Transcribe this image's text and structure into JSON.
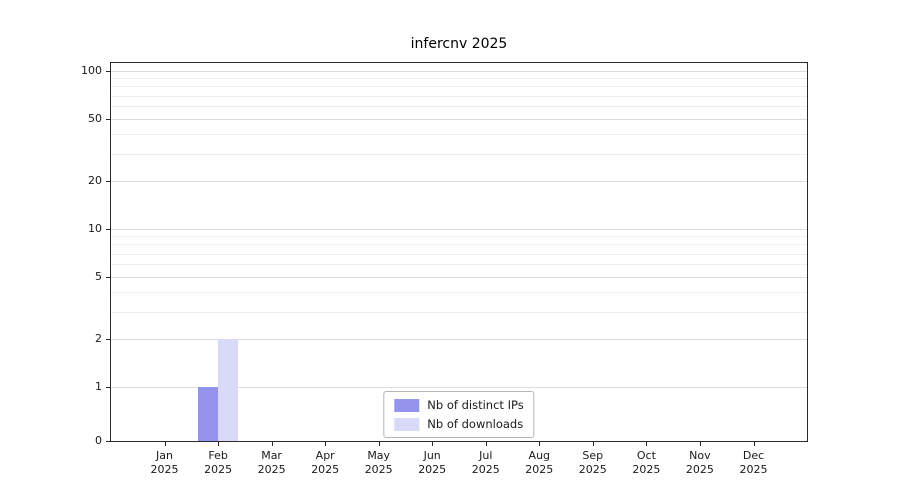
{
  "chart_data": {
    "type": "bar",
    "title": "infercnv 2025",
    "year_label": "2025",
    "categories": [
      "Jan",
      "Feb",
      "Mar",
      "Apr",
      "May",
      "Jun",
      "Jul",
      "Aug",
      "Sep",
      "Oct",
      "Nov",
      "Dec"
    ],
    "series": [
      {
        "name": "Nb of distinct IPs",
        "color": "#9494ec",
        "values": [
          0,
          1,
          0,
          0,
          0,
          0,
          0,
          0,
          0,
          0,
          0,
          0
        ]
      },
      {
        "name": "Nb of downloads",
        "color": "#d9d9f8",
        "values": [
          0,
          2,
          0,
          0,
          0,
          0,
          0,
          0,
          0,
          0,
          0,
          0
        ]
      }
    ],
    "y_ticks": [
      0,
      1,
      2,
      5,
      10,
      20,
      50,
      100
    ],
    "ylim": [
      0,
      110
    ],
    "y_scale": "symlog",
    "grid": true,
    "legend_position": "lower center",
    "background": "#ffffff"
  }
}
